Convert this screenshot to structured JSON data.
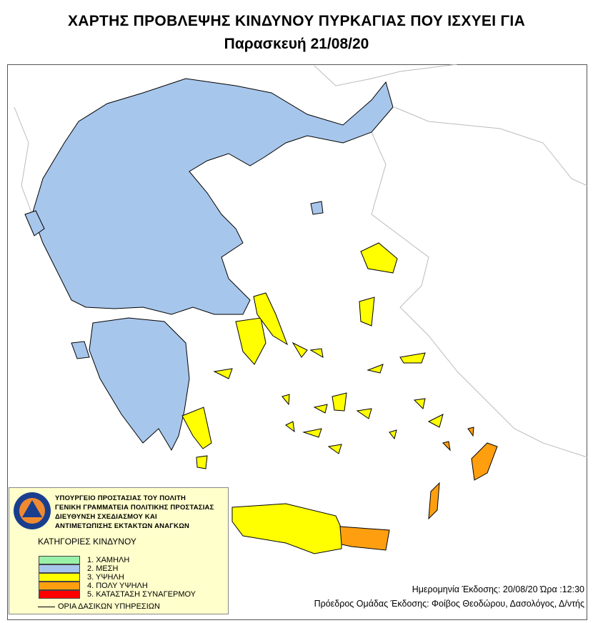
{
  "header": {
    "title": "ΧΑΡΤΗΣ ΠΡΟΒΛΕΨΗΣ ΚΙΝΔΥΝΟΥ ΠΥΡΚΑΓΙΑΣ ΠΟΥ ΙΣΧΥΕΙ ΓΙΑ",
    "subtitle": "Παρασκευή 21/08/20"
  },
  "legend": {
    "logo_text": [
      "ΠΟΛΙΤΙΚΗ ΠΡΟΣΤΑΣΙΑ",
      "ΕΛΛΑΔΑ"
    ],
    "organization": [
      "ΥΠΟΥΡΓΕΙΟ ΠΡΟΣΤΑΣΙΑΣ ΤΟΥ ΠΟΛΙΤΗ",
      "ΓΕΝΙΚΗ ΓΡΑΜΜΑΤΕΙΑ ΠΟΛΙΤΙΚΗΣ ΠΡΟΣΤΑΣΙΑΣ",
      "ΔΙΕΥΘΥΝΣΗ ΣΧΕΔΙΑΣΜΟΥ ΚΑΙ",
      "ΑΝΤΙΜΕΤΩΠΙΣΗΣ ΕΚΤΑΚΤΩΝ ΑΝΑΓΚΩΝ"
    ],
    "categories_title": "ΚΑΤΗΓΟΡΙΕΣ ΚΙΝΔΥΝΟΥ",
    "categories": [
      {
        "label": "1. ΧΑΜΗΛΗ",
        "color": "#99f0a8"
      },
      {
        "label": "2. ΜΕΣΗ",
        "color": "#a7c6ec"
      },
      {
        "label": "3. ΥΨΗΛΗ",
        "color": "#ffff00"
      },
      {
        "label": "4. ΠΟΛΥ ΥΨΗΛΗ",
        "color": "#ff9f10"
      },
      {
        "label": "5. ΚΑΤΑΣΤΑΣΗ ΣΥΝΑΓΕΡΜΟΥ",
        "color": "#ff0000"
      }
    ],
    "boundary_label": "ΟΡΙΑ ΔΑΣΙΚΩΝ ΥΠΗΡΕΣΙΩΝ"
  },
  "footer": {
    "issue": "Ημερομηνία Έκδοσης: 20/08/20  Ώρα :12:30",
    "author": "Πρόεδρος Ομάδας Έκδοσης: Φοίβος Θεοδώρου,  Δασολόγος, Δ/ντής"
  },
  "map": {
    "regions": {
      "mainland": "2. ΜΕΣΗ",
      "peloponnese": "2. ΜΕΣΗ",
      "attica_evia": "3. ΥΨΗΛΗ",
      "aegean_islands": "3. ΥΨΗΛΗ",
      "east_crete_dodecanese": "4. ΠΟΛΥ ΥΨΗΛΗ"
    }
  }
}
